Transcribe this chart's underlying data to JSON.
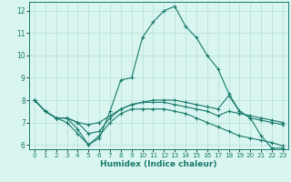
{
  "xlabel": "Humidex (Indice chaleur)",
  "line_color": "#1a7a6a",
  "bg_color": "#d8f5f0",
  "grid_color": "#b8ddd8",
  "xlim": [
    -0.5,
    23.5
  ],
  "ylim": [
    5.8,
    12.4
  ],
  "xticks": [
    0,
    1,
    2,
    3,
    4,
    5,
    6,
    7,
    8,
    9,
    10,
    11,
    12,
    13,
    14,
    15,
    16,
    17,
    18,
    19,
    20,
    21,
    22,
    23
  ],
  "yticks": [
    6,
    7,
    8,
    9,
    10,
    11,
    12
  ],
  "line1_x": [
    0,
    1,
    2,
    3,
    4,
    5,
    6,
    7,
    8,
    9,
    10,
    11,
    12,
    13,
    14,
    15,
    16,
    17,
    18,
    19,
    20,
    21,
    22,
    23
  ],
  "line1_y": [
    8.0,
    7.5,
    7.2,
    7.2,
    6.7,
    6.0,
    6.3,
    7.5,
    8.9,
    9.0,
    10.8,
    11.5,
    12.0,
    12.2,
    11.3,
    10.8,
    10.0,
    9.4,
    8.3,
    7.5,
    7.2,
    6.4,
    5.85,
    5.85
  ],
  "line2_x": [
    0,
    1,
    2,
    3,
    4,
    5,
    6,
    7,
    8,
    9,
    10,
    11,
    12,
    13,
    14,
    15,
    16,
    17,
    18,
    19,
    20,
    21,
    22,
    23
  ],
  "line2_y": [
    8.0,
    7.5,
    7.2,
    7.2,
    7.0,
    6.9,
    7.0,
    7.3,
    7.6,
    7.8,
    7.9,
    8.0,
    8.0,
    8.0,
    7.9,
    7.8,
    7.7,
    7.6,
    8.2,
    7.5,
    7.2,
    7.1,
    7.0,
    6.9
  ],
  "line3_x": [
    0,
    1,
    2,
    3,
    4,
    5,
    6,
    7,
    8,
    9,
    10,
    11,
    12,
    13,
    14,
    15,
    16,
    17,
    18,
    19,
    20,
    21,
    22,
    23
  ],
  "line3_y": [
    8.0,
    7.5,
    7.2,
    7.2,
    7.0,
    6.5,
    6.6,
    7.2,
    7.6,
    7.8,
    7.9,
    7.9,
    7.9,
    7.8,
    7.7,
    7.6,
    7.5,
    7.3,
    7.5,
    7.4,
    7.3,
    7.2,
    7.1,
    7.0
  ],
  "line4_x": [
    0,
    1,
    2,
    3,
    4,
    5,
    6,
    7,
    8,
    9,
    10,
    11,
    12,
    13,
    14,
    15,
    16,
    17,
    18,
    19,
    20,
    21,
    22,
    23
  ],
  "line4_y": [
    8.0,
    7.5,
    7.2,
    7.0,
    6.5,
    6.0,
    6.4,
    7.0,
    7.4,
    7.6,
    7.6,
    7.6,
    7.6,
    7.5,
    7.4,
    7.2,
    7.0,
    6.8,
    6.6,
    6.4,
    6.3,
    6.2,
    6.1,
    5.95
  ]
}
